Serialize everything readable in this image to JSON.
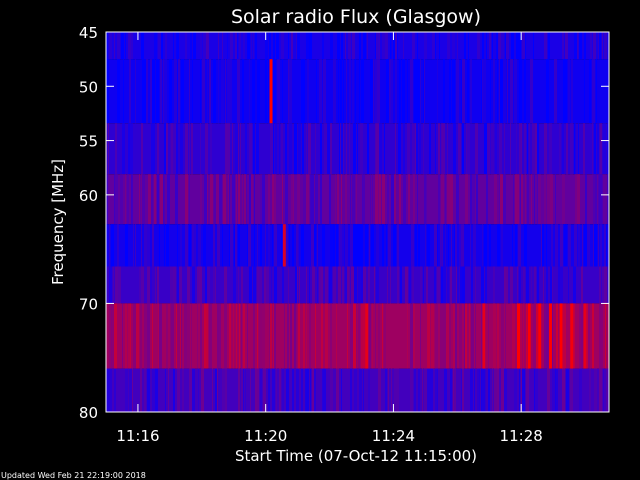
{
  "chart_data": {
    "type": "heatmap",
    "title": "Solar radio Flux (Glasgow)",
    "xlabel": "Start Time (07-Oct-12 11:15:00)",
    "ylabel": "Frequency [MHz]",
    "x_unit": "time",
    "x_range": [
      "11:15:00",
      "11:30:45"
    ],
    "ylim": [
      45,
      80
    ],
    "y_inverted": true,
    "x_ticks": [
      "11:16",
      "11:20",
      "11:24",
      "11:28"
    ],
    "y_ticks": [
      45,
      50,
      55,
      60,
      70,
      80
    ],
    "colorscale": [
      "#0000ff",
      "#ff0000"
    ],
    "bands": [
      {
        "f_low": 45,
        "f_high": 47.5,
        "level": 0.1
      },
      {
        "f_low": 47.5,
        "f_high": 53.4,
        "level": 0.06
      },
      {
        "f_low": 53.4,
        "f_high": 58.1,
        "level": 0.18
      },
      {
        "f_low": 58.1,
        "f_high": 62.7,
        "level": 0.38
      },
      {
        "f_low": 62.7,
        "f_high": 66.6,
        "level": 0.08
      },
      {
        "f_low": 66.6,
        "f_high": 70.0,
        "level": 0.22
      },
      {
        "f_low": 70.0,
        "f_high": 76.0,
        "level": 0.62
      },
      {
        "f_low": 76.0,
        "f_high": 80.0,
        "level": 0.26
      }
    ],
    "bursts": [
      {
        "time": "11:20:10",
        "f_low": 47.5,
        "f_high": 53.4,
        "level": 1.0
      },
      {
        "time": "11:20:35",
        "f_low": 62.7,
        "f_high": 66.6,
        "level": 0.85
      },
      {
        "time": "11:23:10",
        "f_low": 70.0,
        "f_high": 76.0,
        "level": 0.9
      },
      {
        "time": "11:26:50",
        "f_low": 70.0,
        "f_high": 76.0,
        "level": 0.9
      },
      {
        "time": "11:27:55",
        "f_low": 70.0,
        "f_high": 76.0,
        "level": 1.0
      },
      {
        "time": "11:28:15",
        "f_low": 70.0,
        "f_high": 76.0,
        "level": 1.0
      },
      {
        "time": "11:28:35",
        "f_low": 70.0,
        "f_high": 76.0,
        "level": 1.0
      },
      {
        "time": "11:28:55",
        "f_low": 70.0,
        "f_high": 76.0,
        "level": 1.0
      },
      {
        "time": "11:29:15",
        "f_low": 70.0,
        "f_high": 76.0,
        "level": 1.0
      },
      {
        "time": "11:29:35",
        "f_low": 70.0,
        "f_high": 76.0,
        "level": 0.95
      },
      {
        "time": "11:30:00",
        "f_low": 70.0,
        "f_high": 76.0,
        "level": 0.9
      }
    ]
  },
  "footer": {
    "updated": "Updated Wed Feb 21 22:19:00 2018"
  },
  "colors": {
    "background": "#000000",
    "text": "#ffffff",
    "low": "#0000ff",
    "high": "#ff0000"
  }
}
